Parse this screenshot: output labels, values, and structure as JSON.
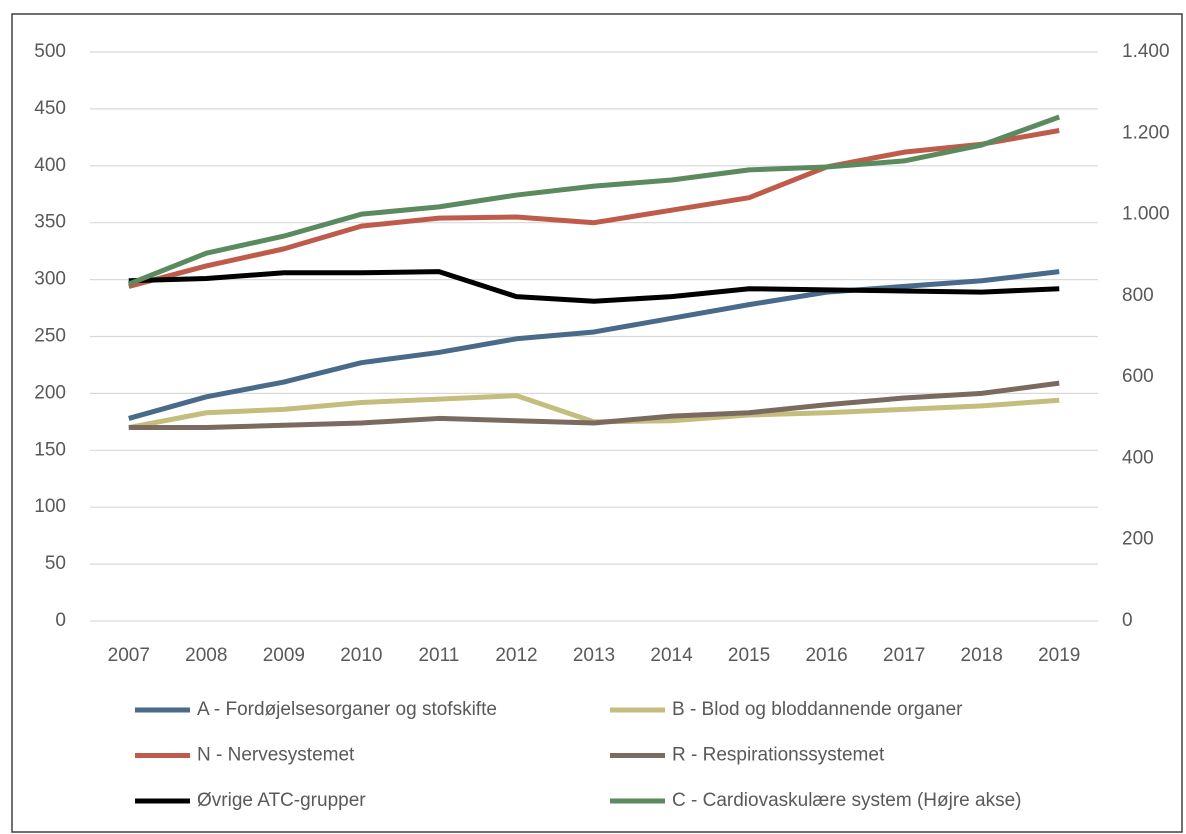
{
  "chart_data": {
    "type": "line",
    "categories": [
      "2007",
      "2008",
      "2009",
      "2010",
      "2011",
      "2012",
      "2013",
      "2014",
      "2015",
      "2016",
      "2017",
      "2018",
      "2019"
    ],
    "ylim": [
      0,
      500
    ],
    "yticks": [
      0,
      50,
      100,
      150,
      200,
      250,
      300,
      350,
      400,
      450,
      500
    ],
    "y2lim": [
      0,
      1400
    ],
    "y2ticks": [
      0,
      200,
      400,
      600,
      800,
      {
        "value": 1000,
        "label": "1.000"
      },
      {
        "value": 1200,
        "label": "1.200"
      },
      {
        "value": 1400,
        "label": "1.400"
      }
    ],
    "grid": true,
    "legend": "bottom",
    "series": [
      {
        "name": "A - Fordøjelsesorganer og stofskifte",
        "color": "#4a6a8a",
        "values": [
          178,
          197,
          210,
          227,
          236,
          248,
          254,
          266,
          278,
          289,
          294,
          299,
          307
        ]
      },
      {
        "name": "B - Blod og bloddannende organer",
        "color": "#c4bd7e",
        "values": [
          170,
          183,
          186,
          192,
          195,
          198,
          175,
          176,
          181,
          183,
          186,
          189,
          194
        ]
      },
      {
        "name": "N - Nervesystemet",
        "color": "#bf5b4a",
        "values": [
          294,
          312,
          327,
          347,
          354,
          355,
          350,
          361,
          372,
          399,
          412,
          419,
          431
        ]
      },
      {
        "name": "R - Respirationssystemet",
        "color": "#7a6a60",
        "values": [
          170,
          170,
          172,
          174,
          178,
          176,
          174,
          180,
          183,
          190,
          196,
          200,
          209
        ]
      },
      {
        "name": "Øvrige ATC-grupper",
        "color": "#000000",
        "values": [
          299,
          301,
          306,
          306,
          307,
          285,
          281,
          285,
          292,
          291,
          290,
          289,
          292
        ]
      },
      {
        "name": "C - Cardiovaskulære system (Højre akse)",
        "color": "#5a8a5e",
        "axis": "y2",
        "values": [
          829,
          905,
          947,
          1001,
          1019,
          1048,
          1070,
          1085,
          1110,
          1117,
          1132,
          1171,
          1240
        ]
      }
    ]
  }
}
